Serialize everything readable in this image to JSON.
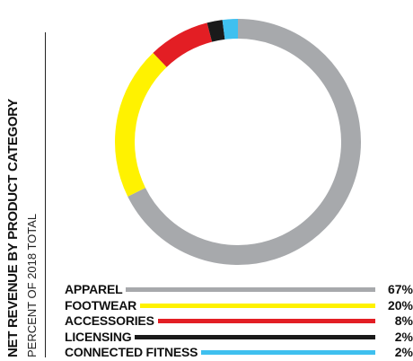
{
  "title": "NET REVENUE BY PRODUCT CATEGORY",
  "subtitle": "PERCENT OF 2018 TOTAL",
  "chart_data": {
    "type": "pie",
    "donut": true,
    "title": "NET REVENUE BY PRODUCT CATEGORY",
    "subtitle": "PERCENT OF 2018 TOTAL",
    "categories": [
      "APPAREL",
      "FOOTWEAR",
      "ACCESSORIES",
      "LICENSING",
      "CONNECTED FITNESS"
    ],
    "values": [
      67,
      20,
      8,
      2,
      2
    ],
    "labels": [
      "67%",
      "20%",
      "8%",
      "2%",
      "2%"
    ],
    "colors": [
      "#a7a9ac",
      "#fff200",
      "#e31e24",
      "#1a1a1a",
      "#3fc0ef"
    ],
    "legend": "bottom"
  }
}
